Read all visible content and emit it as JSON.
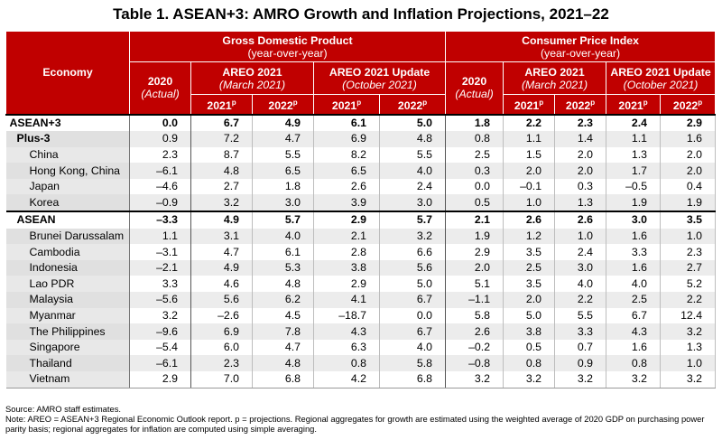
{
  "title": "Table 1. ASEAN+3: AMRO Growth and Inflation Projections, 2021–22",
  "headers": {
    "economy": "Economy",
    "gdp": "Gross Domestic Product",
    "gdp_sub": "(year-over-year)",
    "cpi": "Consumer Price Index",
    "cpi_sub": "(year-over-year)",
    "y2020": "2020",
    "actual": "(Actual)",
    "areo2021": "AREO 2021",
    "areo2021_date": "(March 2021)",
    "areo_update": "AREO 2021 Update",
    "areo_update_date": "(October 2021)",
    "y2021": "2021",
    "y2022": "2022",
    "p": "p"
  },
  "rows": [
    {
      "name": "ASEAN+3",
      "vals": [
        "0.0",
        "6.7",
        "4.9",
        "6.1",
        "5.0",
        "1.8",
        "2.2",
        "2.3",
        "2.4",
        "2.9"
      ]
    },
    {
      "name": "Plus-3",
      "vals": [
        "0.9",
        "7.2",
        "4.7",
        "6.9",
        "4.8",
        "0.8",
        "1.1",
        "1.4",
        "1.1",
        "1.6"
      ]
    },
    {
      "name": "China",
      "vals": [
        "2.3",
        "8.7",
        "5.5",
        "8.2",
        "5.5",
        "2.5",
        "1.5",
        "2.0",
        "1.3",
        "2.0"
      ]
    },
    {
      "name": "Hong Kong, China",
      "vals": [
        "–6.1",
        "4.8",
        "6.5",
        "6.5",
        "4.0",
        "0.3",
        "2.0",
        "2.0",
        "1.7",
        "2.0"
      ]
    },
    {
      "name": "Japan",
      "vals": [
        "–4.6",
        "2.7",
        "1.8",
        "2.6",
        "2.4",
        "0.0",
        "–0.1",
        "0.3",
        "–0.5",
        "0.4"
      ]
    },
    {
      "name": "Korea",
      "vals": [
        "–0.9",
        "3.2",
        "3.0",
        "3.9",
        "3.0",
        "0.5",
        "1.0",
        "1.3",
        "1.9",
        "1.9"
      ]
    },
    {
      "name": "ASEAN",
      "vals": [
        "–3.3",
        "4.9",
        "5.7",
        "2.9",
        "5.7",
        "2.1",
        "2.6",
        "2.6",
        "3.0",
        "3.5"
      ]
    },
    {
      "name": "Brunei Darussalam",
      "vals": [
        "1.1",
        "3.1",
        "4.0",
        "2.1",
        "3.2",
        "1.9",
        "1.2",
        "1.0",
        "1.6",
        "1.0"
      ]
    },
    {
      "name": "Cambodia",
      "vals": [
        "–3.1",
        "4.7",
        "6.1",
        "2.8",
        "6.6",
        "2.9",
        "3.5",
        "2.4",
        "3.3",
        "2.3"
      ]
    },
    {
      "name": "Indonesia",
      "vals": [
        "–2.1",
        "4.9",
        "5.3",
        "3.8",
        "5.6",
        "2.0",
        "2.5",
        "3.0",
        "1.6",
        "2.7"
      ]
    },
    {
      "name": "Lao PDR",
      "vals": [
        "3.3",
        "4.6",
        "4.8",
        "2.9",
        "5.0",
        "5.1",
        "3.5",
        "4.0",
        "4.0",
        "5.2"
      ]
    },
    {
      "name": "Malaysia",
      "vals": [
        "–5.6",
        "5.6",
        "6.2",
        "4.1",
        "6.7",
        "–1.1",
        "2.0",
        "2.2",
        "2.5",
        "2.2"
      ]
    },
    {
      "name": "Myanmar",
      "vals": [
        "3.2",
        "–2.6",
        "4.5",
        "–18.7",
        "0.0",
        "5.8",
        "5.0",
        "5.5",
        "6.7",
        "12.4"
      ]
    },
    {
      "name": "The Philippines",
      "vals": [
        "–9.6",
        "6.9",
        "7.8",
        "4.3",
        "6.7",
        "2.6",
        "3.8",
        "3.3",
        "4.3",
        "3.2"
      ]
    },
    {
      "name": "Singapore",
      "vals": [
        "–5.4",
        "6.0",
        "4.7",
        "6.3",
        "4.0",
        "–0.2",
        "0.5",
        "0.7",
        "1.6",
        "1.3"
      ]
    },
    {
      "name": "Thailand",
      "vals": [
        "–6.1",
        "2.3",
        "4.8",
        "0.8",
        "5.8",
        "–0.8",
        "0.8",
        "0.9",
        "0.8",
        "1.0"
      ]
    },
    {
      "name": "Vietnam",
      "vals": [
        "2.9",
        "7.0",
        "6.8",
        "4.2",
        "6.8",
        "3.2",
        "3.2",
        "3.2",
        "3.2",
        "3.2"
      ]
    }
  ],
  "footnotes": {
    "source": "Source: AMRO staff estimates.",
    "note": "Note: AREO = ASEAN+3 Regional Economic Outlook report. p = projections. Regional aggregates for growth are estimated using the weighted average of 2020 GDP on purchasing power parity basis; regional aggregates for inflation are computed using simple averaging."
  }
}
